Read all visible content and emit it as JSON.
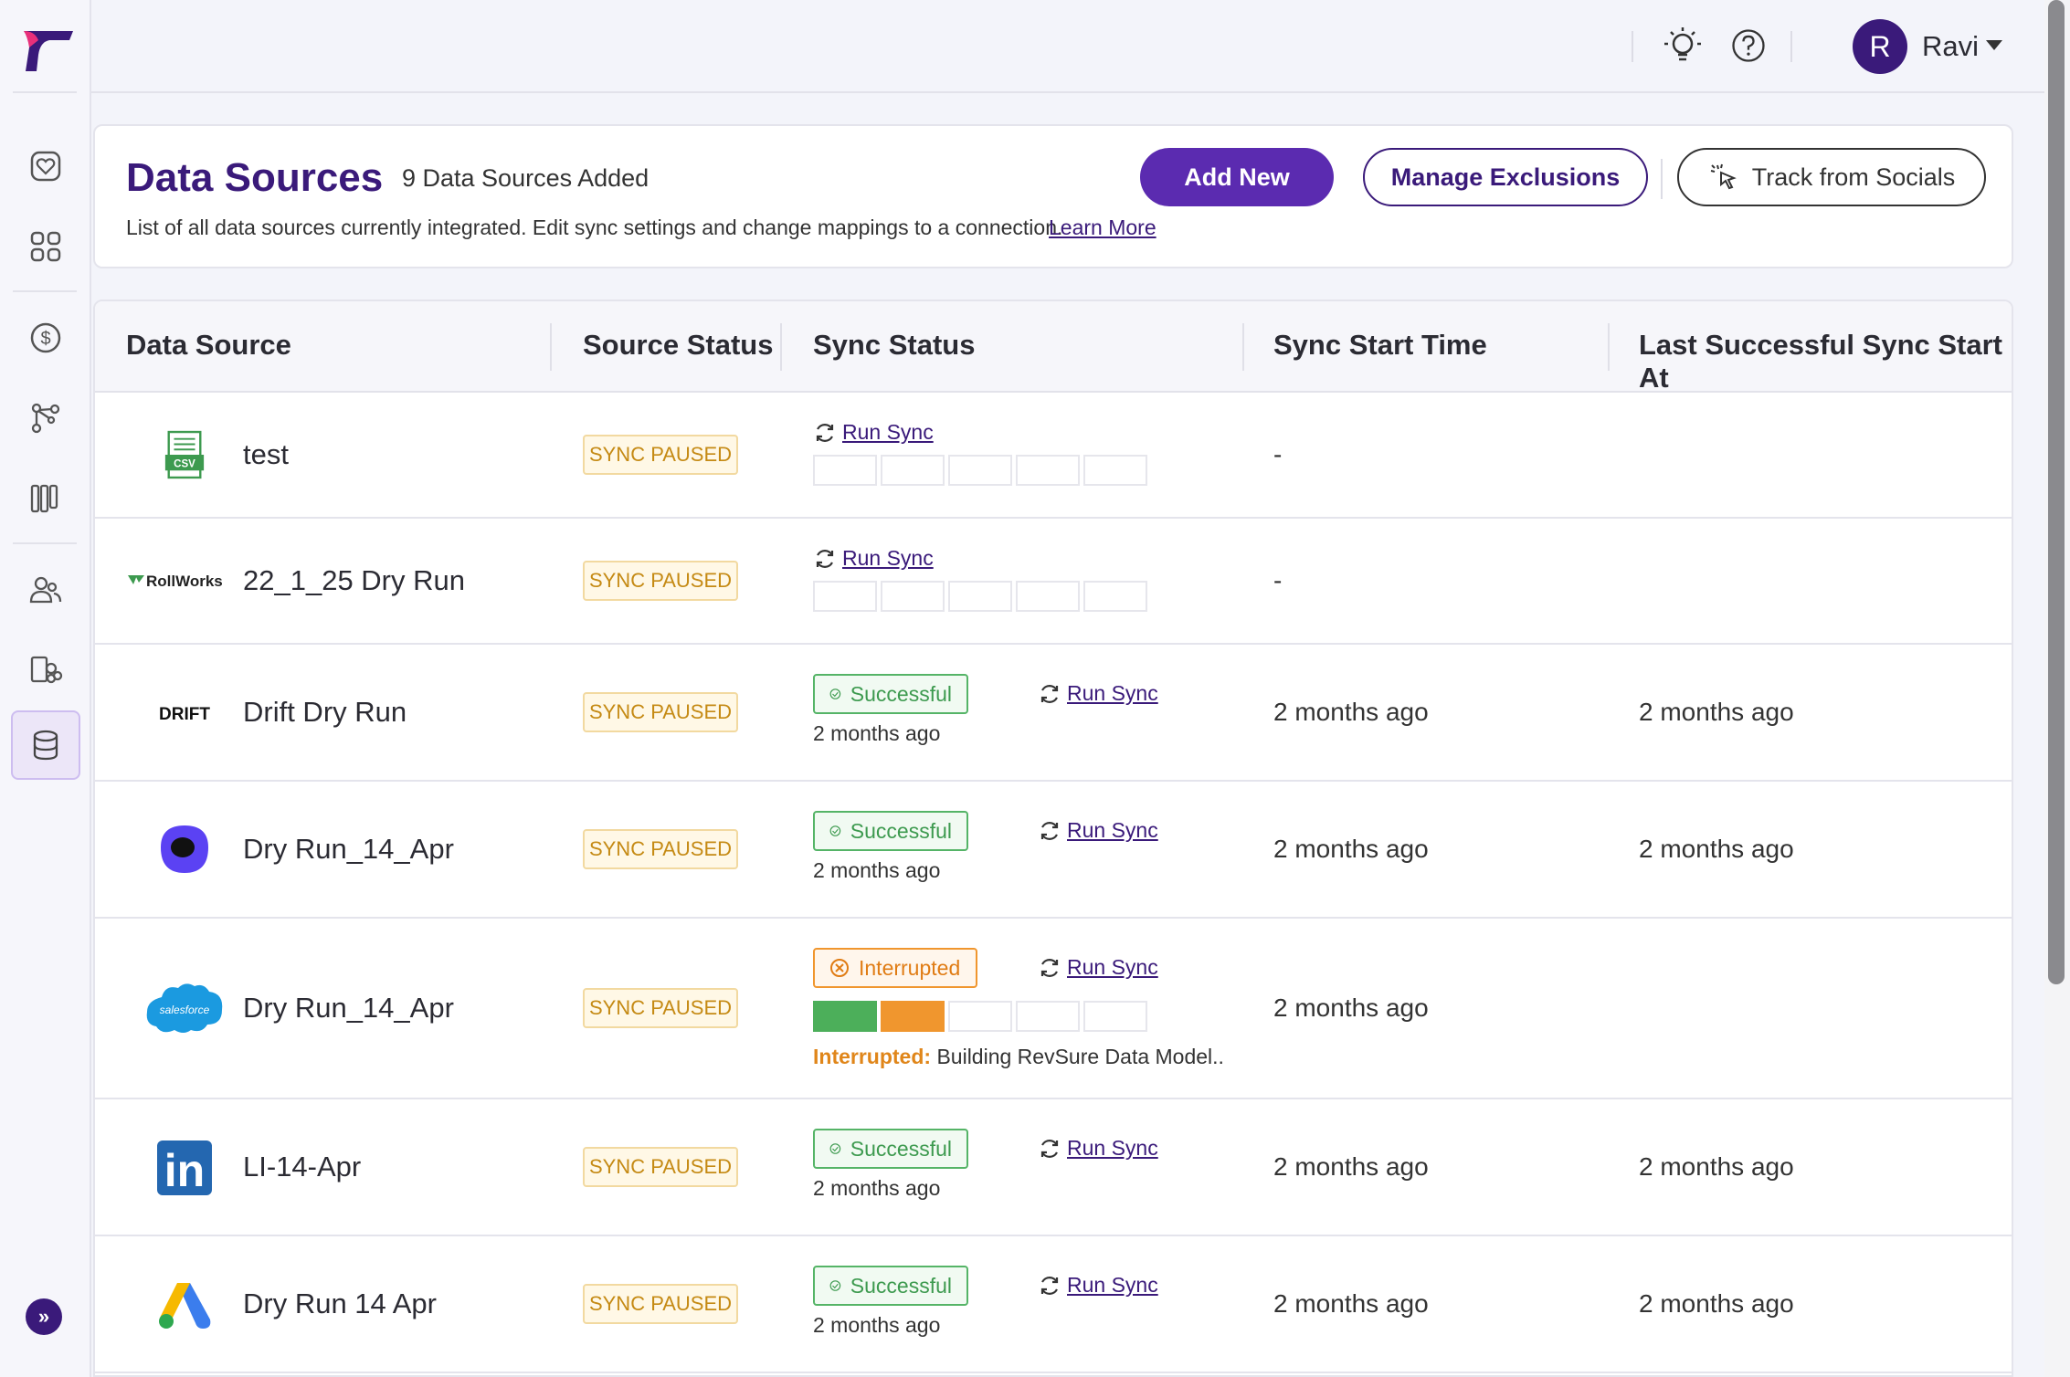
{
  "app": {
    "logo_icon": "brand-logo",
    "colors": {
      "brand": "#3a1a7a",
      "primary": "#5b2bb0",
      "paused": "#c58a14",
      "success": "#3d9a4f",
      "interrupted": "#e07c14"
    }
  },
  "sidebar": {
    "items": [
      {
        "icon": "heart-icon"
      },
      {
        "icon": "grid-icon"
      },
      {
        "icon": "dollar-icon"
      },
      {
        "icon": "graph-icon"
      },
      {
        "icon": "columns-icon"
      },
      {
        "icon": "users-icon"
      },
      {
        "icon": "accounts-icon"
      },
      {
        "icon": "database-icon",
        "active": true
      }
    ],
    "expand_label": "»"
  },
  "topbar": {
    "theme_icon": "lightbulb-icon",
    "help_icon": "help-icon",
    "user_initial": "R",
    "user_name": "Ravi"
  },
  "header": {
    "title": "Data Sources",
    "count": "9 Data Sources Added",
    "description": "List of all data sources currently integrated. Edit sync settings and change mappings to a connection.",
    "learn_more": "Learn More",
    "add_new": "Add New",
    "manage_exclusions": "Manage Exclusions",
    "track_socials": "Track from Socials"
  },
  "table": {
    "columns": [
      "Data Source",
      "Source Status",
      "Sync Status",
      "Sync Start Time",
      "Last Successful Sync Start At"
    ],
    "run_sync_label": "Run Sync",
    "rows": [
      {
        "logo": "csv",
        "name": "test",
        "source_status": "SYNC PAUSED",
        "sync_state": "none",
        "sync_start": "-",
        "last_success": ""
      },
      {
        "logo": "rollworks",
        "logo_text": "RollWorks",
        "name": "22_1_25 Dry Run",
        "source_status": "SYNC PAUSED",
        "sync_state": "none",
        "sync_start": "-",
        "last_success": ""
      },
      {
        "logo": "drift",
        "logo_text": "DRIFT",
        "name": "Drift Dry Run",
        "source_status": "SYNC PAUSED",
        "sync_state": "Successful",
        "sync_time": "2 months ago",
        "sync_start": "2 months ago",
        "last_success": "2 months ago"
      },
      {
        "logo": "outreach",
        "name": "Dry Run_14_Apr",
        "source_status": "SYNC PAUSED",
        "sync_state": "Successful",
        "sync_time": "2 months ago",
        "sync_start": "2 months ago",
        "last_success": "2 months ago"
      },
      {
        "logo": "salesforce",
        "logo_text": "salesforce",
        "name": "Dry Run_14_Apr",
        "source_status": "SYNC PAUSED",
        "sync_state": "Interrupted",
        "interrupt_label": "Interrupted:",
        "interrupt_msg": "Building RevSure Data Model..",
        "sync_start": "2 months ago",
        "last_success": ""
      },
      {
        "logo": "linkedin",
        "logo_text": "in",
        "name": "LI-14-Apr",
        "source_status": "SYNC PAUSED",
        "sync_state": "Successful",
        "sync_time": "2 months ago",
        "sync_start": "2 months ago",
        "last_success": "2 months ago"
      },
      {
        "logo": "google-ads",
        "name": "Dry Run 14 Apr",
        "source_status": "SYNC PAUSED",
        "sync_state": "Successful",
        "sync_time": "2 months ago",
        "sync_start": "2 months ago",
        "last_success": "2 months ago"
      }
    ]
  }
}
